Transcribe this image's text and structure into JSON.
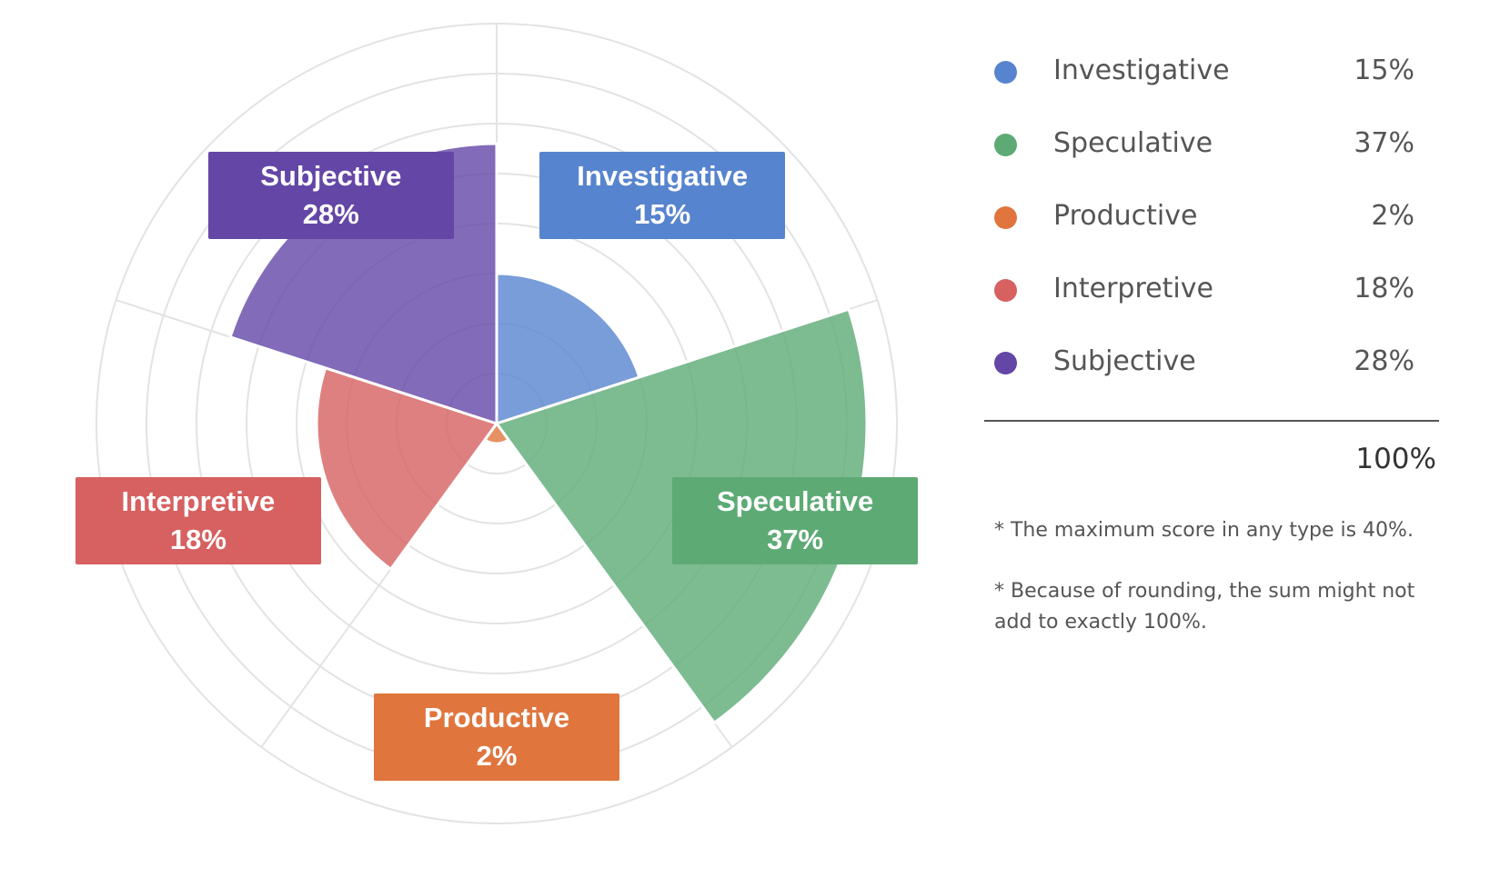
{
  "chart_data": {
    "type": "polar-area",
    "max_value": 40,
    "rings": 8,
    "start_angle_deg": 0,
    "grid": true,
    "legend_position": "right",
    "categories": [
      {
        "name": "Investigative",
        "value": 15,
        "label": "15%",
        "color": "#5784cf"
      },
      {
        "name": "Speculative",
        "value": 37,
        "label": "37%",
        "color": "#5daa75"
      },
      {
        "name": "Productive",
        "value": 2,
        "label": "2%",
        "color": "#e0753d"
      },
      {
        "name": "Interpretive",
        "value": 18,
        "label": "18%",
        "color": "#d76060"
      },
      {
        "name": "Subjective",
        "value": 28,
        "label": "28%",
        "color": "#6346a6"
      }
    ]
  },
  "summary": {
    "total_label": "100%",
    "notes": [
      "* The maximum score in any type is 40%.",
      "* Because of rounding, the sum might not add to exactly 100%."
    ]
  },
  "colors": {
    "grid": "#e3e3e3",
    "legend_text": "#555555",
    "total_text": "#333333",
    "label_text": "#ffffff"
  }
}
